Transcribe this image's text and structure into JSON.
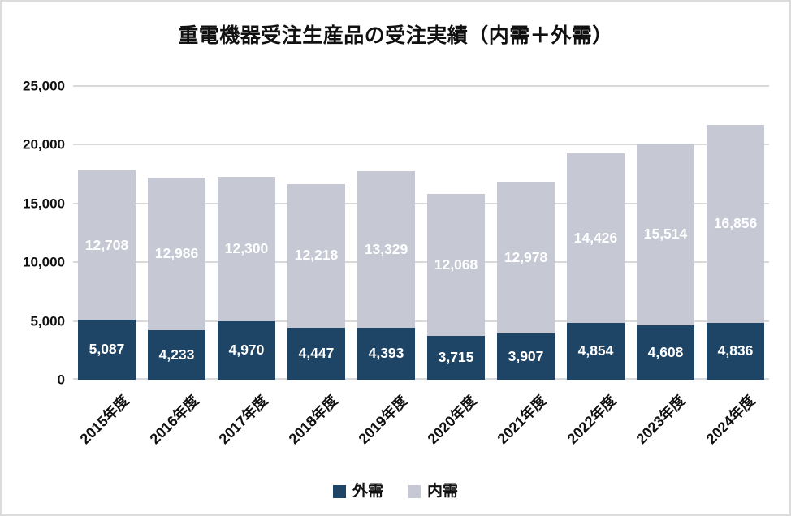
{
  "title": "重電機器受注生産品の受注実績（内需＋外需）",
  "colors": {
    "gaiju_navy": "#1f4566",
    "naiju_gray": "#c6c9d3",
    "gridline": "#d9d9d9",
    "text": "#111111",
    "bar_label": "#ffffff"
  },
  "chart_data": {
    "type": "bar",
    "stacked": true,
    "title": "重電機器受注生産品の受注実績（内需＋外需）",
    "categories": [
      "2015年度",
      "2016年度",
      "2017年度",
      "2018年度",
      "2019年度",
      "2020年度",
      "2021年度",
      "2022年度",
      "2023年度",
      "2024年度"
    ],
    "series": [
      {
        "name": "外需",
        "color": "#1f4566",
        "values": [
          5087,
          4233,
          4970,
          4447,
          4393,
          3715,
          3907,
          4854,
          4608,
          4836
        ]
      },
      {
        "name": "内需",
        "color": "#c6c9d3",
        "values": [
          12708,
          12986,
          12300,
          12218,
          13329,
          12068,
          12978,
          14426,
          15514,
          16856
        ]
      }
    ],
    "xlabel": "",
    "ylabel": "",
    "ylim": [
      0,
      25000
    ],
    "ytick_step": 5000,
    "ytick_labels": [
      "0",
      "5,000",
      "10,000",
      "15,000",
      "20,000",
      "25,000"
    ],
    "grid": true,
    "legend_position": "bottom",
    "value_labels_shown": true
  }
}
